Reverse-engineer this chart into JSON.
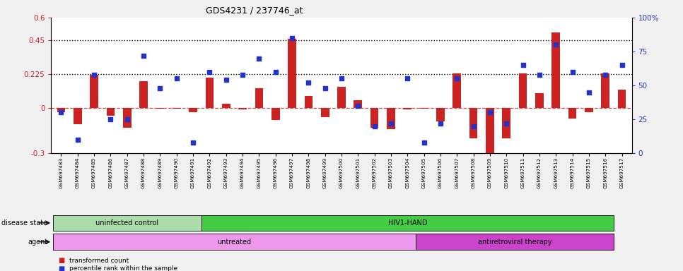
{
  "title": "GDS4231 / 237746_at",
  "samples": [
    "GSM697483",
    "GSM697484",
    "GSM697485",
    "GSM697486",
    "GSM697487",
    "GSM697488",
    "GSM697489",
    "GSM697490",
    "GSM697491",
    "GSM697492",
    "GSM697493",
    "GSM697494",
    "GSM697495",
    "GSM697496",
    "GSM697497",
    "GSM697498",
    "GSM697499",
    "GSM697500",
    "GSM697501",
    "GSM697502",
    "GSM697503",
    "GSM697504",
    "GSM697505",
    "GSM697506",
    "GSM697507",
    "GSM697508",
    "GSM697509",
    "GSM697510",
    "GSM697511",
    "GSM697512",
    "GSM697513",
    "GSM697514",
    "GSM697515",
    "GSM697516",
    "GSM697517"
  ],
  "transformed_count": [
    -0.03,
    -0.11,
    0.22,
    -0.05,
    -0.13,
    0.18,
    -0.005,
    -0.005,
    -0.03,
    0.2,
    0.03,
    -0.01,
    0.13,
    -0.08,
    0.46,
    0.08,
    -0.06,
    0.14,
    0.05,
    -0.13,
    -0.14,
    -0.01,
    -0.005,
    -0.09,
    0.23,
    -0.2,
    -0.31,
    -0.2,
    0.23,
    0.1,
    0.5,
    -0.07,
    -0.03,
    0.23,
    0.12
  ],
  "percentile_rank": [
    30,
    10,
    58,
    25,
    25,
    72,
    48,
    55,
    8,
    60,
    54,
    58,
    70,
    60,
    85,
    52,
    48,
    55,
    35,
    20,
    22,
    55,
    8,
    22,
    55,
    20,
    30,
    22,
    65,
    58,
    80,
    60,
    45,
    58,
    65
  ],
  "ylim_left": [
    -0.3,
    0.6
  ],
  "ylim_right": [
    0,
    100
  ],
  "yticks_left": [
    -0.3,
    0.0,
    0.225,
    0.45,
    0.6
  ],
  "ytick_labels_left": [
    "-0.3",
    "0",
    "0.225",
    "0.45",
    "0.6"
  ],
  "ytick_labels_right": [
    "0",
    "25",
    "50",
    "75",
    "100%"
  ],
  "yticks_right": [
    0,
    25,
    50,
    75,
    100
  ],
  "hlines_dotted": [
    0.225,
    0.45
  ],
  "bar_color": "#cc2222",
  "scatter_color": "#2233cc",
  "disease_bands": [
    {
      "label": "uninfected control",
      "start": 0,
      "end": 9,
      "color": "#aaddaa"
    },
    {
      "label": "HIV1-HAND",
      "start": 9,
      "end": 34,
      "color": "#44cc44"
    }
  ],
  "agent_bands": [
    {
      "label": "untreated",
      "start": 0,
      "end": 22,
      "color": "#ee99ee"
    },
    {
      "label": "antiretroviral therapy",
      "start": 22,
      "end": 34,
      "color": "#cc44cc"
    }
  ],
  "disease_state_label": "disease state",
  "agent_label": "agent",
  "legend_bar_label": "transformed count",
  "legend_scatter_label": "percentile rank within the sample",
  "bg_color": "#f0f0f0"
}
